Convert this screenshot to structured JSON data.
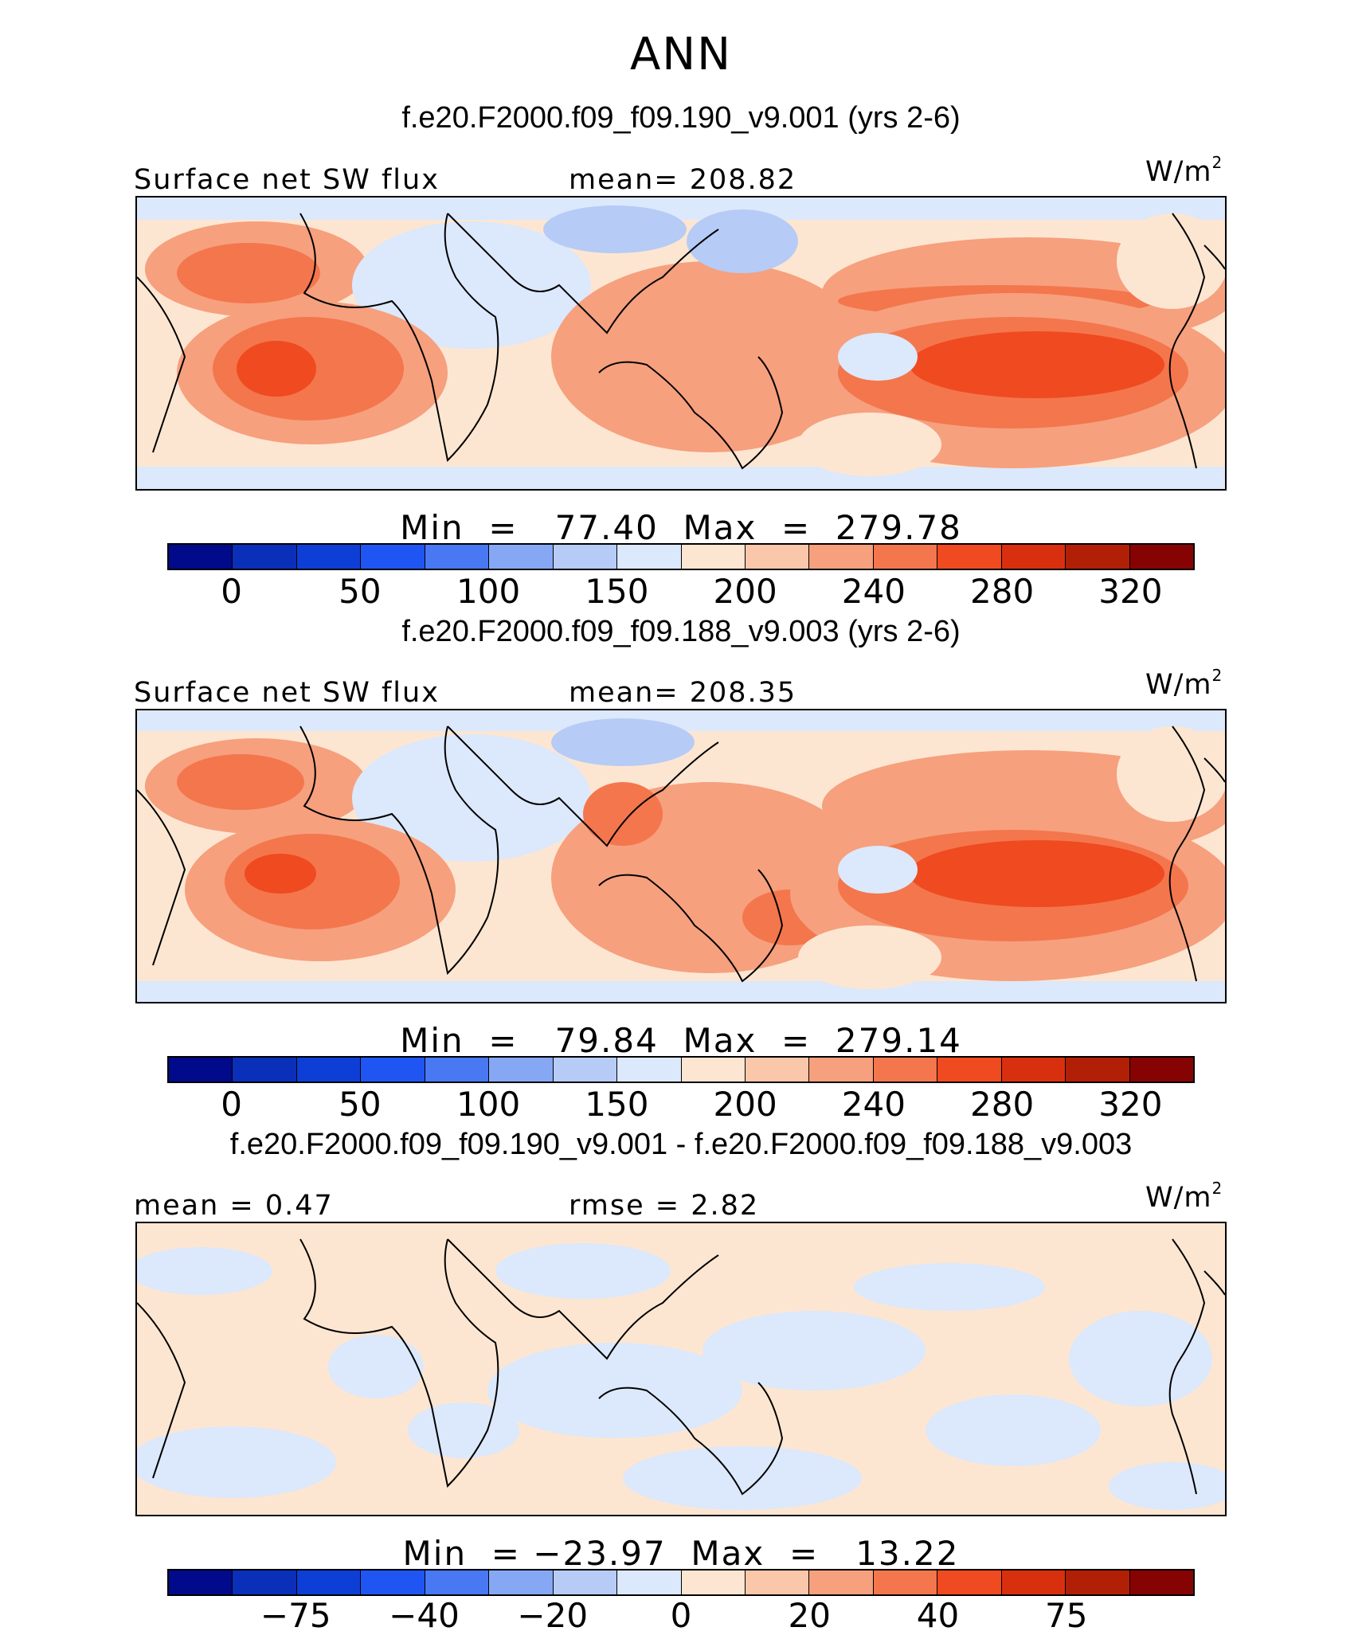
{
  "title": "ANN",
  "panels": [
    {
      "case_title": "f.e20.F2000.f09_f09.190_v9.001 (yrs 2-6)",
      "left_label": "Surface net SW flux",
      "center_label": "mean=  208.82",
      "units": "W/m",
      "units_sup": "2",
      "minmax": "Min  =   77.40  Max  =  279.78",
      "ticks": [
        "0",
        "50",
        "100",
        "150",
        "200",
        "240",
        "280",
        "320"
      ]
    },
    {
      "case_title": "f.e20.F2000.f09_f09.188_v9.003 (yrs 2-6)",
      "left_label": "Surface net SW flux",
      "center_label": "mean=  208.35",
      "units": "W/m",
      "units_sup": "2",
      "minmax": "Min  =   79.84  Max  =  279.14",
      "ticks": [
        "0",
        "50",
        "100",
        "150",
        "200",
        "240",
        "280",
        "320"
      ]
    },
    {
      "case_title": "f.e20.F2000.f09_f09.190_v9.001 - f.e20.F2000.f09_f09.188_v9.003",
      "left_label": "mean  =    0.47",
      "center_label": "rmse  =    2.82",
      "units": "W/m",
      "units_sup": "2",
      "minmax": "Min  = −23.97  Max  =   13.22",
      "ticks": [
        "−75",
        "−40",
        "−20",
        "0",
        "20",
        "40",
        "75"
      ]
    }
  ],
  "colorbar_colors": [
    "#000a8a",
    "#0a2fb8",
    "#0d3fd6",
    "#1f55f2",
    "#4878f2",
    "#86a8f4",
    "#b6cbf6",
    "#dce8fb",
    "#fde6d1",
    "#fbc7aa",
    "#f6a07e",
    "#f4764d",
    "#f04a20",
    "#d8300e",
    "#b21f07",
    "#860303"
  ]
}
